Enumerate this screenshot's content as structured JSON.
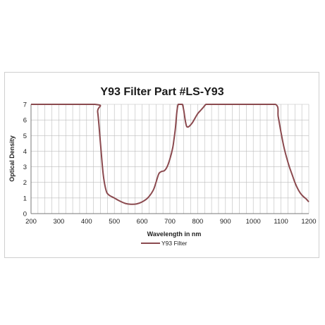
{
  "chart_data": {
    "type": "line",
    "title": "Y93 Filter Part #LS-Y93",
    "xlabel": "Wavelength in nm",
    "ylabel": "Optical Density",
    "xlim": [
      200,
      1200
    ],
    "ylim": [
      0,
      7
    ],
    "xticks": [
      200,
      300,
      400,
      500,
      600,
      700,
      800,
      900,
      1000,
      1100,
      1200
    ],
    "yticks": [
      0,
      1,
      2,
      3,
      4,
      5,
      6,
      7
    ],
    "grid": true,
    "legend_position": "bottom-center",
    "series": [
      {
        "name": "Y93 Filter",
        "color": "#8b4a4f",
        "x": [
          200,
          430,
          440,
          450,
          460,
          470,
          480,
          500,
          520,
          540,
          560,
          580,
          600,
          620,
          640,
          650,
          660,
          670,
          680,
          690,
          700,
          710,
          715,
          720,
          725,
          730,
          740,
          745,
          750,
          755,
          760,
          765,
          770,
          780,
          790,
          800,
          810,
          820,
          830,
          840,
          900,
          1000,
          1080,
          1090,
          1100,
          1110,
          1120,
          1130,
          1140,
          1150,
          1160,
          1170,
          1180,
          1190,
          1200
        ],
        "y": [
          7,
          7,
          6.5,
          4.5,
          2.5,
          1.5,
          1.2,
          1.0,
          0.8,
          0.65,
          0.6,
          0.62,
          0.75,
          1.0,
          1.5,
          2.0,
          2.55,
          2.7,
          2.75,
          3.0,
          3.5,
          4.2,
          4.8,
          5.5,
          6.5,
          7,
          7,
          7,
          6.6,
          6.0,
          5.6,
          5.55,
          5.6,
          5.8,
          6.1,
          6.4,
          6.6,
          6.8,
          7,
          7,
          7,
          7,
          7,
          6.2,
          5.2,
          4.3,
          3.6,
          3.0,
          2.5,
          2.0,
          1.6,
          1.3,
          1.1,
          0.95,
          0.75
        ]
      }
    ]
  }
}
